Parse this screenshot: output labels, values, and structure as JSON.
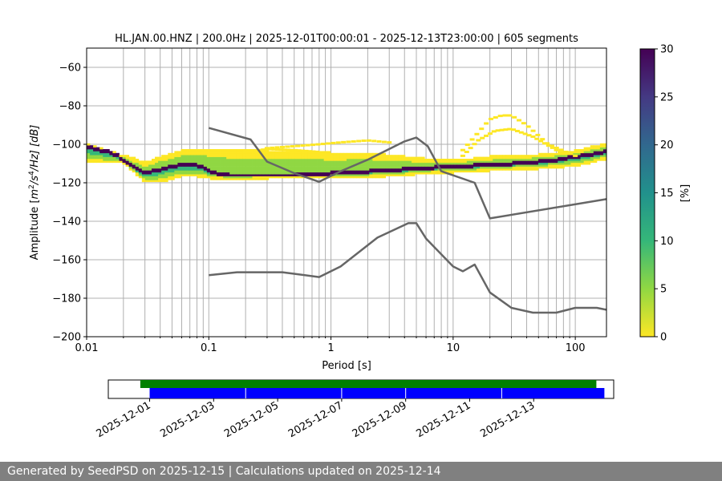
{
  "chart_data": [
    {
      "type": "heatmap",
      "subtype": "probabilistic-power-spectral-density",
      "title": "HL.JAN.00.HNZ | 200.0Hz | 2025-12-01T00:00:01 - 2025-12-13T23:00:00 | 605 segments",
      "xlabel": "Period [s]",
      "ylabel": "Amplitude [m²/s⁴/Hz] [dB]",
      "ylabel_parts": {
        "prefix": "Amplitude [",
        "m": "m",
        "e2": "2",
        "s": "/s",
        "e4": "4",
        "hz": "/Hz] [dB]"
      },
      "x_scale": "log",
      "xlim": [
        0.01,
        180
      ],
      "ylim": [
        -200,
        -50
      ],
      "x_ticks": [
        0.01,
        0.1,
        1,
        10,
        100
      ],
      "x_tick_labels": [
        "0.01",
        "0.1",
        "1",
        "10",
        "100"
      ],
      "y_ticks": [
        -200,
        -180,
        -160,
        -140,
        -120,
        -100,
        -80,
        -60
      ],
      "y_tick_labels": [
        "−200",
        "−180",
        "−160",
        "−140",
        "−120",
        "−100",
        "−80",
        "−60"
      ],
      "grid": true,
      "colorbar": {
        "label": "[%]",
        "range": [
          0,
          30
        ],
        "ticks": [
          "0",
          "5",
          "10",
          "15",
          "20",
          "25",
          "30"
        ],
        "colormap": "viridis_r"
      },
      "mode_curve": {
        "period": [
          0.01,
          0.012,
          0.015,
          0.018,
          0.02,
          0.023,
          0.026,
          0.03,
          0.035,
          0.04,
          0.05,
          0.06,
          0.07,
          0.08,
          0.09,
          0.1,
          0.12,
          0.15,
          0.2,
          0.3,
          0.5,
          0.7,
          1.0,
          1.5,
          2,
          3,
          5,
          7,
          10,
          15,
          20,
          30,
          50,
          70,
          100,
          140,
          180
        ],
        "db": [
          -101,
          -102.5,
          -104,
          -106,
          -108,
          -111,
          -113,
          -114.5,
          -114,
          -113,
          -111.5,
          -110.5,
          -110.5,
          -111,
          -112,
          -113.5,
          -115.5,
          -116,
          -116,
          -116,
          -116,
          -115.5,
          -115,
          -114.5,
          -114,
          -113.5,
          -112.5,
          -112,
          -111.5,
          -111,
          -110.5,
          -110,
          -109,
          -108,
          -106.5,
          -105,
          -103.5
        ]
      },
      "spread_upper": {
        "period": [
          0.02,
          0.03,
          0.04,
          0.06,
          0.08,
          0.1,
          0.15,
          0.3,
          0.6,
          1.0,
          2,
          4,
          6,
          10,
          15,
          20,
          30,
          50,
          100,
          180
        ],
        "db": [
          -106,
          -110,
          -107,
          -104,
          -103,
          -103,
          -103,
          -104,
          -104,
          -105,
          -105,
          -107,
          -108,
          -108,
          -108,
          -107,
          -106,
          -106,
          -104,
          -100
        ]
      },
      "spread_lower": {
        "period": [
          0.02,
          0.03,
          0.04,
          0.06,
          0.08,
          0.1,
          0.15,
          0.3,
          0.6,
          1.0,
          2,
          4,
          6,
          10,
          15,
          20,
          30,
          50,
          100,
          180
        ],
        "db": [
          -109,
          -119,
          -119,
          -116,
          -116,
          -117,
          -117.5,
          -117,
          -117,
          -117,
          -116.5,
          -115.5,
          -114.5,
          -114,
          -113.5,
          -113,
          -112.5,
          -112,
          -110.5,
          -107
        ]
      },
      "bump_curves": [
        {
          "period": [
            0.3,
            0.5,
            0.8,
            1.2,
            2,
            3
          ],
          "db": [
            -102,
            -101,
            -100,
            -99,
            -98,
            -99
          ]
        },
        {
          "period": [
            12,
            16,
            20,
            25,
            30,
            40,
            60,
            100
          ],
          "db": [
            -103,
            -94,
            -87,
            -85,
            -85,
            -90,
            -100,
            -106
          ]
        },
        {
          "period": [
            12,
            16,
            22,
            30,
            45,
            70
          ],
          "db": [
            -106,
            -98,
            -93,
            -92,
            -96,
            -103
          ]
        },
        {
          "period": [
            0.2,
            0.3,
            0.5,
            0.8,
            1.0
          ],
          "db": [
            -104,
            -102.5,
            -103,
            -104,
            -106
          ]
        }
      ],
      "reference_curves": [
        {
          "name": "",
          "period": [
            0.1,
            0.22,
            0.3,
            0.5,
            0.8,
            1.2,
            2,
            4,
            5,
            6.2,
            8,
            15,
            20,
            180
          ],
          "db": [
            -91.5,
            -97.5,
            -109,
            -115,
            -119.5,
            -114,
            -108,
            -98.5,
            -96.5,
            -101,
            -114,
            -120,
            -138.5,
            -128.5
          ]
        },
        {
          "name": "",
          "period": [
            0.1,
            0.17,
            0.4,
            0.8,
            1.2,
            2.4,
            4.3,
            5.0,
            6.0,
            10,
            12,
            15,
            20,
            30,
            45,
            70,
            100,
            150,
            180
          ],
          "db": [
            -168,
            -166.5,
            -166.5,
            -169,
            -163.5,
            -148.5,
            -141,
            -141,
            -149,
            -163.5,
            -166,
            -162.5,
            -177,
            -185,
            -187.5,
            -187.5,
            -185,
            -185,
            -186
          ]
        }
      ]
    },
    {
      "type": "timeline",
      "x_tick_labels": [
        "2025-12-01",
        "2025-12-03",
        "2025-12-05",
        "2025-12-07",
        "2025-12-09",
        "2025-12-11",
        "2025-12-13"
      ],
      "xlim": [
        "2025-11-29T17:00",
        "2025-12-15T12:00"
      ],
      "series": [
        {
          "color": "#008000",
          "start": "2025-11-30T17:00",
          "end": "2025-12-14T23:00"
        },
        {
          "color": "#0000ff",
          "segments": [
            [
              "2025-12-01T00:00",
              "2025-12-03T23:00"
            ],
            [
              "2025-12-04T00:00",
              "2025-12-06T23:00"
            ],
            [
              "2025-12-07T00:00",
              "2025-12-08T23:00"
            ],
            [
              "2025-12-09T00:00",
              "2025-12-11T23:00"
            ],
            [
              "2025-12-12T00:00",
              "2025-12-14T23:00"
            ]
          ]
        }
      ]
    }
  ],
  "footer": {
    "text": "Generated by SeedPSD on 2025-12-15 | Calculations updated on 2025-12-14"
  },
  "colors": {
    "grid": "#b0b0b0",
    "reference_curve": "#666666",
    "footer_bg": "#808080"
  }
}
